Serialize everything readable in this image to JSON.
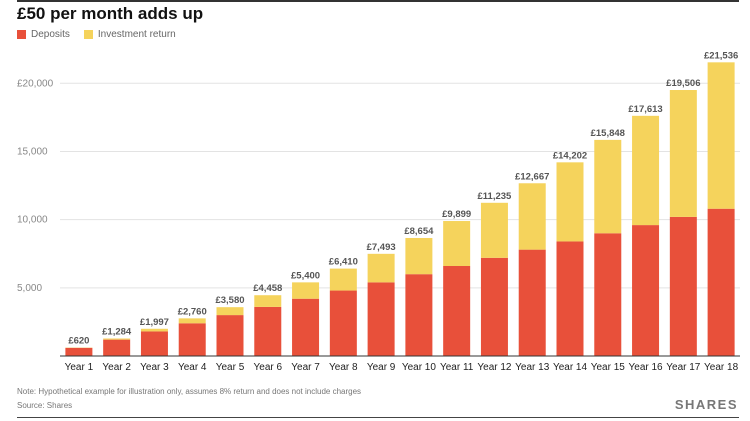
{
  "title": "£50 per month adds up",
  "legend": [
    {
      "label": "Deposits",
      "color": "#E8503A"
    },
    {
      "label": "Investment return",
      "color": "#F5D35C"
    }
  ],
  "chart_data": {
    "type": "bar",
    "stacked": true,
    "categories": [
      "Year 1",
      "Year 2",
      "Year 3",
      "Year 4",
      "Year 5",
      "Year 6",
      "Year 7",
      "Year 8",
      "Year 9",
      "Year 10",
      "Year 11",
      "Year 12",
      "Year 13",
      "Year 14",
      "Year 15",
      "Year 16",
      "Year 17",
      "Year 18"
    ],
    "series": [
      {
        "name": "Deposits",
        "color": "#E8503A",
        "values": [
          600,
          1200,
          1800,
          2400,
          3000,
          3600,
          4200,
          4800,
          5400,
          6000,
          6600,
          7200,
          7800,
          8400,
          9000,
          9600,
          10200,
          10800
        ]
      },
      {
        "name": "Investment return",
        "color": "#F5D35C",
        "values": [
          20,
          84,
          197,
          360,
          580,
          858,
          1200,
          1610,
          2093,
          2654,
          3299,
          4035,
          4867,
          5802,
          6848,
          8013,
          9306,
          10736
        ]
      }
    ],
    "totals": [
      620,
      1284,
      1997,
      2760,
      3580,
      4458,
      5400,
      6410,
      7493,
      8654,
      9899,
      11235,
      12667,
      14202,
      15848,
      17613,
      19506,
      21536
    ],
    "total_labels": [
      "£620",
      "£1,284",
      "£1,997",
      "£2,760",
      "£3,580",
      "£4,458",
      "£5,400",
      "£6,410",
      "£7,493",
      "£8,654",
      "£9,899",
      "£11,235",
      "£12,667",
      "£14,202",
      "£15,848",
      "£17,613",
      "£19,506",
      "£21,536"
    ],
    "y_ticks": [
      {
        "value": 5000,
        "label": "5,000"
      },
      {
        "value": 10000,
        "label": "10,000"
      },
      {
        "value": 15000,
        "label": "15,000"
      },
      {
        "value": 20000,
        "label": "£20,000"
      }
    ],
    "ylim": [
      0,
      22000
    ],
    "grid": true,
    "legend_position": "top-left"
  },
  "note": "Note: Hypothetical example for illustration only, assumes 8% return and does not include charges",
  "source": "Source: Shares",
  "brand": "SHARES"
}
